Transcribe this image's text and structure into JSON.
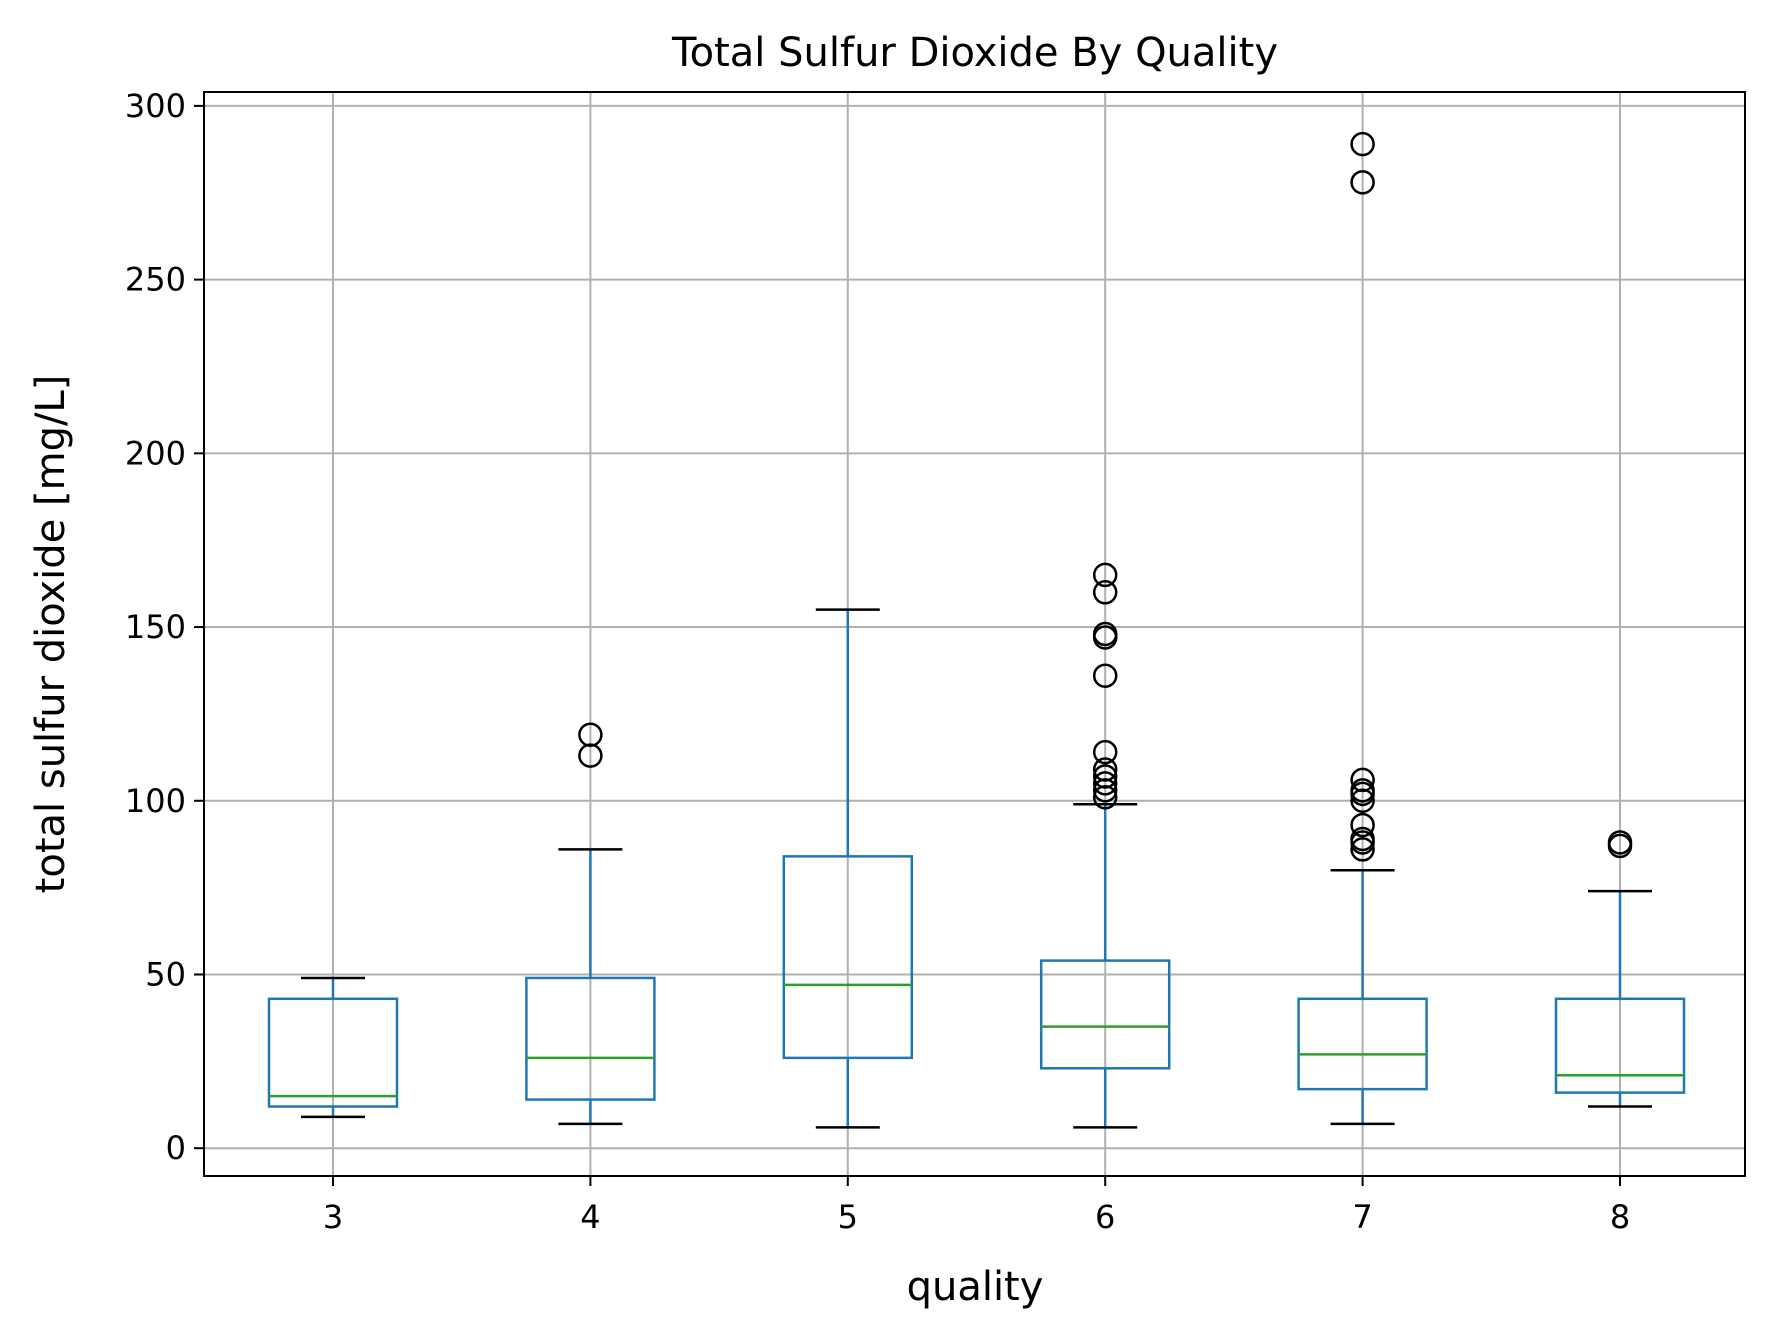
{
  "chart_data": {
    "type": "box",
    "title": "Total Sulfur Dioxide By Quality",
    "xlabel": "quality",
    "ylabel": "total sulfur dioxide [mg/L]",
    "ylim": [
      -8,
      304
    ],
    "yticks": [
      0,
      50,
      100,
      150,
      200,
      250,
      300
    ],
    "grid": true,
    "categories": [
      "3",
      "4",
      "5",
      "6",
      "7",
      "8"
    ],
    "boxes": [
      {
        "category": "3",
        "whisker_low": 9,
        "q1": 12,
        "median": 15,
        "q3": 43,
        "whisker_high": 49,
        "outliers": []
      },
      {
        "category": "4",
        "whisker_low": 7,
        "q1": 14,
        "median": 26,
        "q3": 49,
        "whisker_high": 86,
        "outliers": [
          113,
          119
        ]
      },
      {
        "category": "5",
        "whisker_low": 6,
        "q1": 26,
        "median": 47,
        "q3": 84,
        "whisker_high": 155,
        "outliers": []
      },
      {
        "category": "6",
        "whisker_low": 6,
        "q1": 23,
        "median": 35,
        "q3": 54,
        "whisker_high": 99,
        "outliers": [
          101,
          103,
          105,
          107,
          109,
          114,
          136,
          147,
          148,
          160,
          165
        ]
      },
      {
        "category": "7",
        "whisker_low": 7,
        "q1": 17,
        "median": 27,
        "q3": 43,
        "whisker_high": 80,
        "outliers": [
          86,
          88,
          89,
          93,
          100,
          102,
          103,
          106,
          278,
          289
        ]
      },
      {
        "category": "8",
        "whisker_low": 12,
        "q1": 16,
        "median": 21,
        "q3": 43,
        "whisker_high": 74,
        "outliers": [
          87,
          88
        ]
      }
    ],
    "colors": {
      "box": "#1f77b4",
      "median": "#2ca02c",
      "cap": "#000000",
      "grid": "#b0b0b0",
      "outlier": "#000000"
    }
  }
}
